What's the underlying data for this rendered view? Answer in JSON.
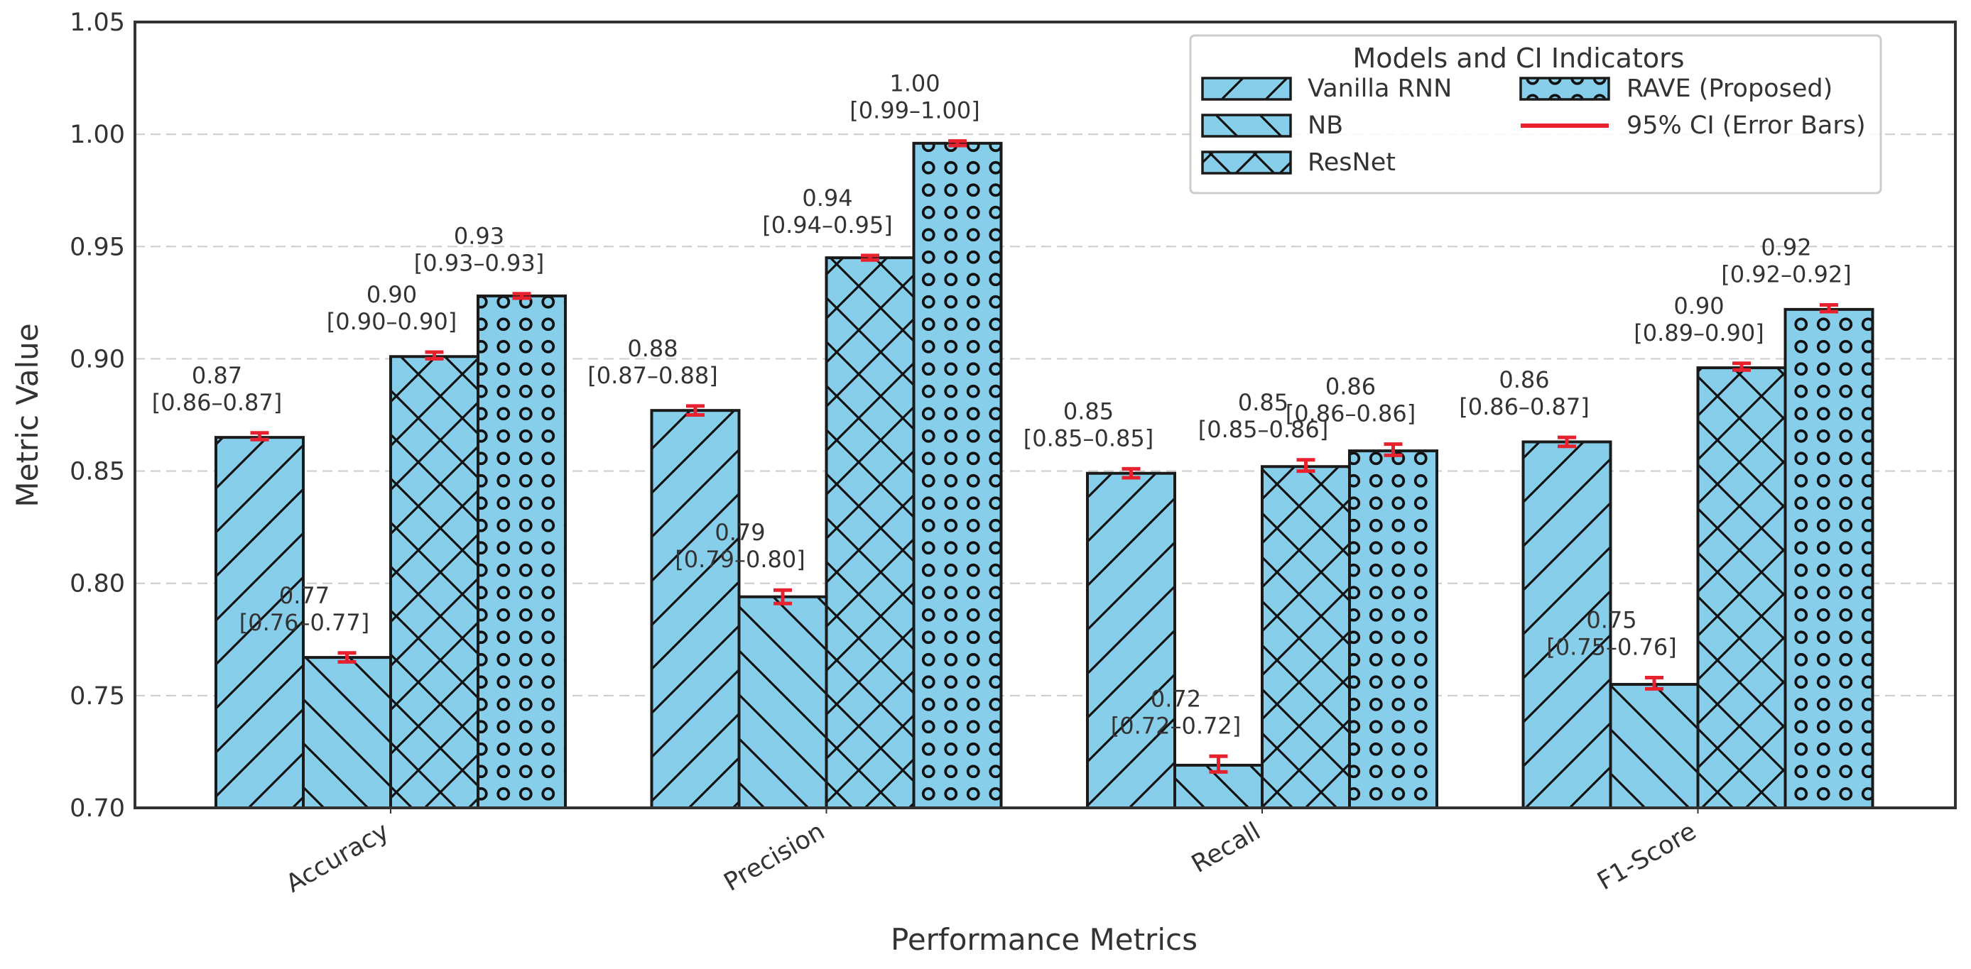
{
  "chart_data": {
    "type": "bar",
    "xlabel": "Performance Metrics",
    "ylabel": "Metric Value",
    "ylim": [
      0.7,
      1.05
    ],
    "yticks": [
      "0.70",
      "0.75",
      "0.80",
      "0.85",
      "0.90",
      "0.95",
      "1.00",
      "1.05"
    ],
    "grid": "horizontal dashed",
    "legend_position": "top-right",
    "legend_title": "Models and CI Indicators",
    "ci_legend_label": "95% CI (Error Bars)",
    "bar_color": "#87ceeb",
    "ci_color": "#e8212e",
    "categories": [
      "Accuracy",
      "Precision",
      "Recall",
      "F1-Score"
    ],
    "series": [
      {
        "name": "Vanilla RNN",
        "hatch": "diag-forward",
        "values": [
          0.865,
          0.877,
          0.849,
          0.863
        ],
        "ci": [
          [
            0.864,
            0.867
          ],
          [
            0.875,
            0.879
          ],
          [
            0.847,
            0.851
          ],
          [
            0.861,
            0.865
          ]
        ],
        "labels": [
          "0.87",
          "0.88",
          "0.85",
          "0.86"
        ],
        "ci_labels": [
          "[0.86–0.87]",
          "[0.87–0.88]",
          "[0.85–0.85]",
          "[0.86–0.87]"
        ]
      },
      {
        "name": "NB",
        "hatch": "diag-back",
        "values": [
          0.767,
          0.794,
          0.719,
          0.755
        ],
        "ci": [
          [
            0.765,
            0.769
          ],
          [
            0.791,
            0.797
          ],
          [
            0.716,
            0.723
          ],
          [
            0.753,
            0.758
          ]
        ],
        "labels": [
          "0.77",
          "0.79",
          "0.72",
          "0.75"
        ],
        "ci_labels": [
          "[0.76–0.77]",
          "[0.79–0.80]",
          "[0.72–0.72]",
          "[0.75–0.76]"
        ]
      },
      {
        "name": "ResNet",
        "hatch": "cross",
        "values": [
          0.901,
          0.945,
          0.852,
          0.896
        ],
        "ci": [
          [
            0.9,
            0.903
          ],
          [
            0.944,
            0.946
          ],
          [
            0.85,
            0.855
          ],
          [
            0.895,
            0.898
          ]
        ],
        "labels": [
          "0.90",
          "0.94",
          "0.85",
          "0.90"
        ],
        "ci_labels": [
          "[0.90–0.90]",
          "[0.94–0.95]",
          "[0.85–0.86]",
          "[0.89–0.90]"
        ]
      },
      {
        "name": "RAVE (Proposed)",
        "hatch": "circles",
        "values": [
          0.928,
          0.996,
          0.859,
          0.922
        ],
        "ci": [
          [
            0.927,
            0.929
          ],
          [
            0.995,
            0.997
          ],
          [
            0.857,
            0.862
          ],
          [
            0.921,
            0.924
          ]
        ],
        "labels": [
          "0.93",
          "1.00",
          "0.86",
          "0.92"
        ],
        "ci_labels": [
          "[0.93–0.93]",
          "[0.99–1.00]",
          "[0.86–0.86]",
          "[0.92–0.92]"
        ]
      }
    ]
  }
}
